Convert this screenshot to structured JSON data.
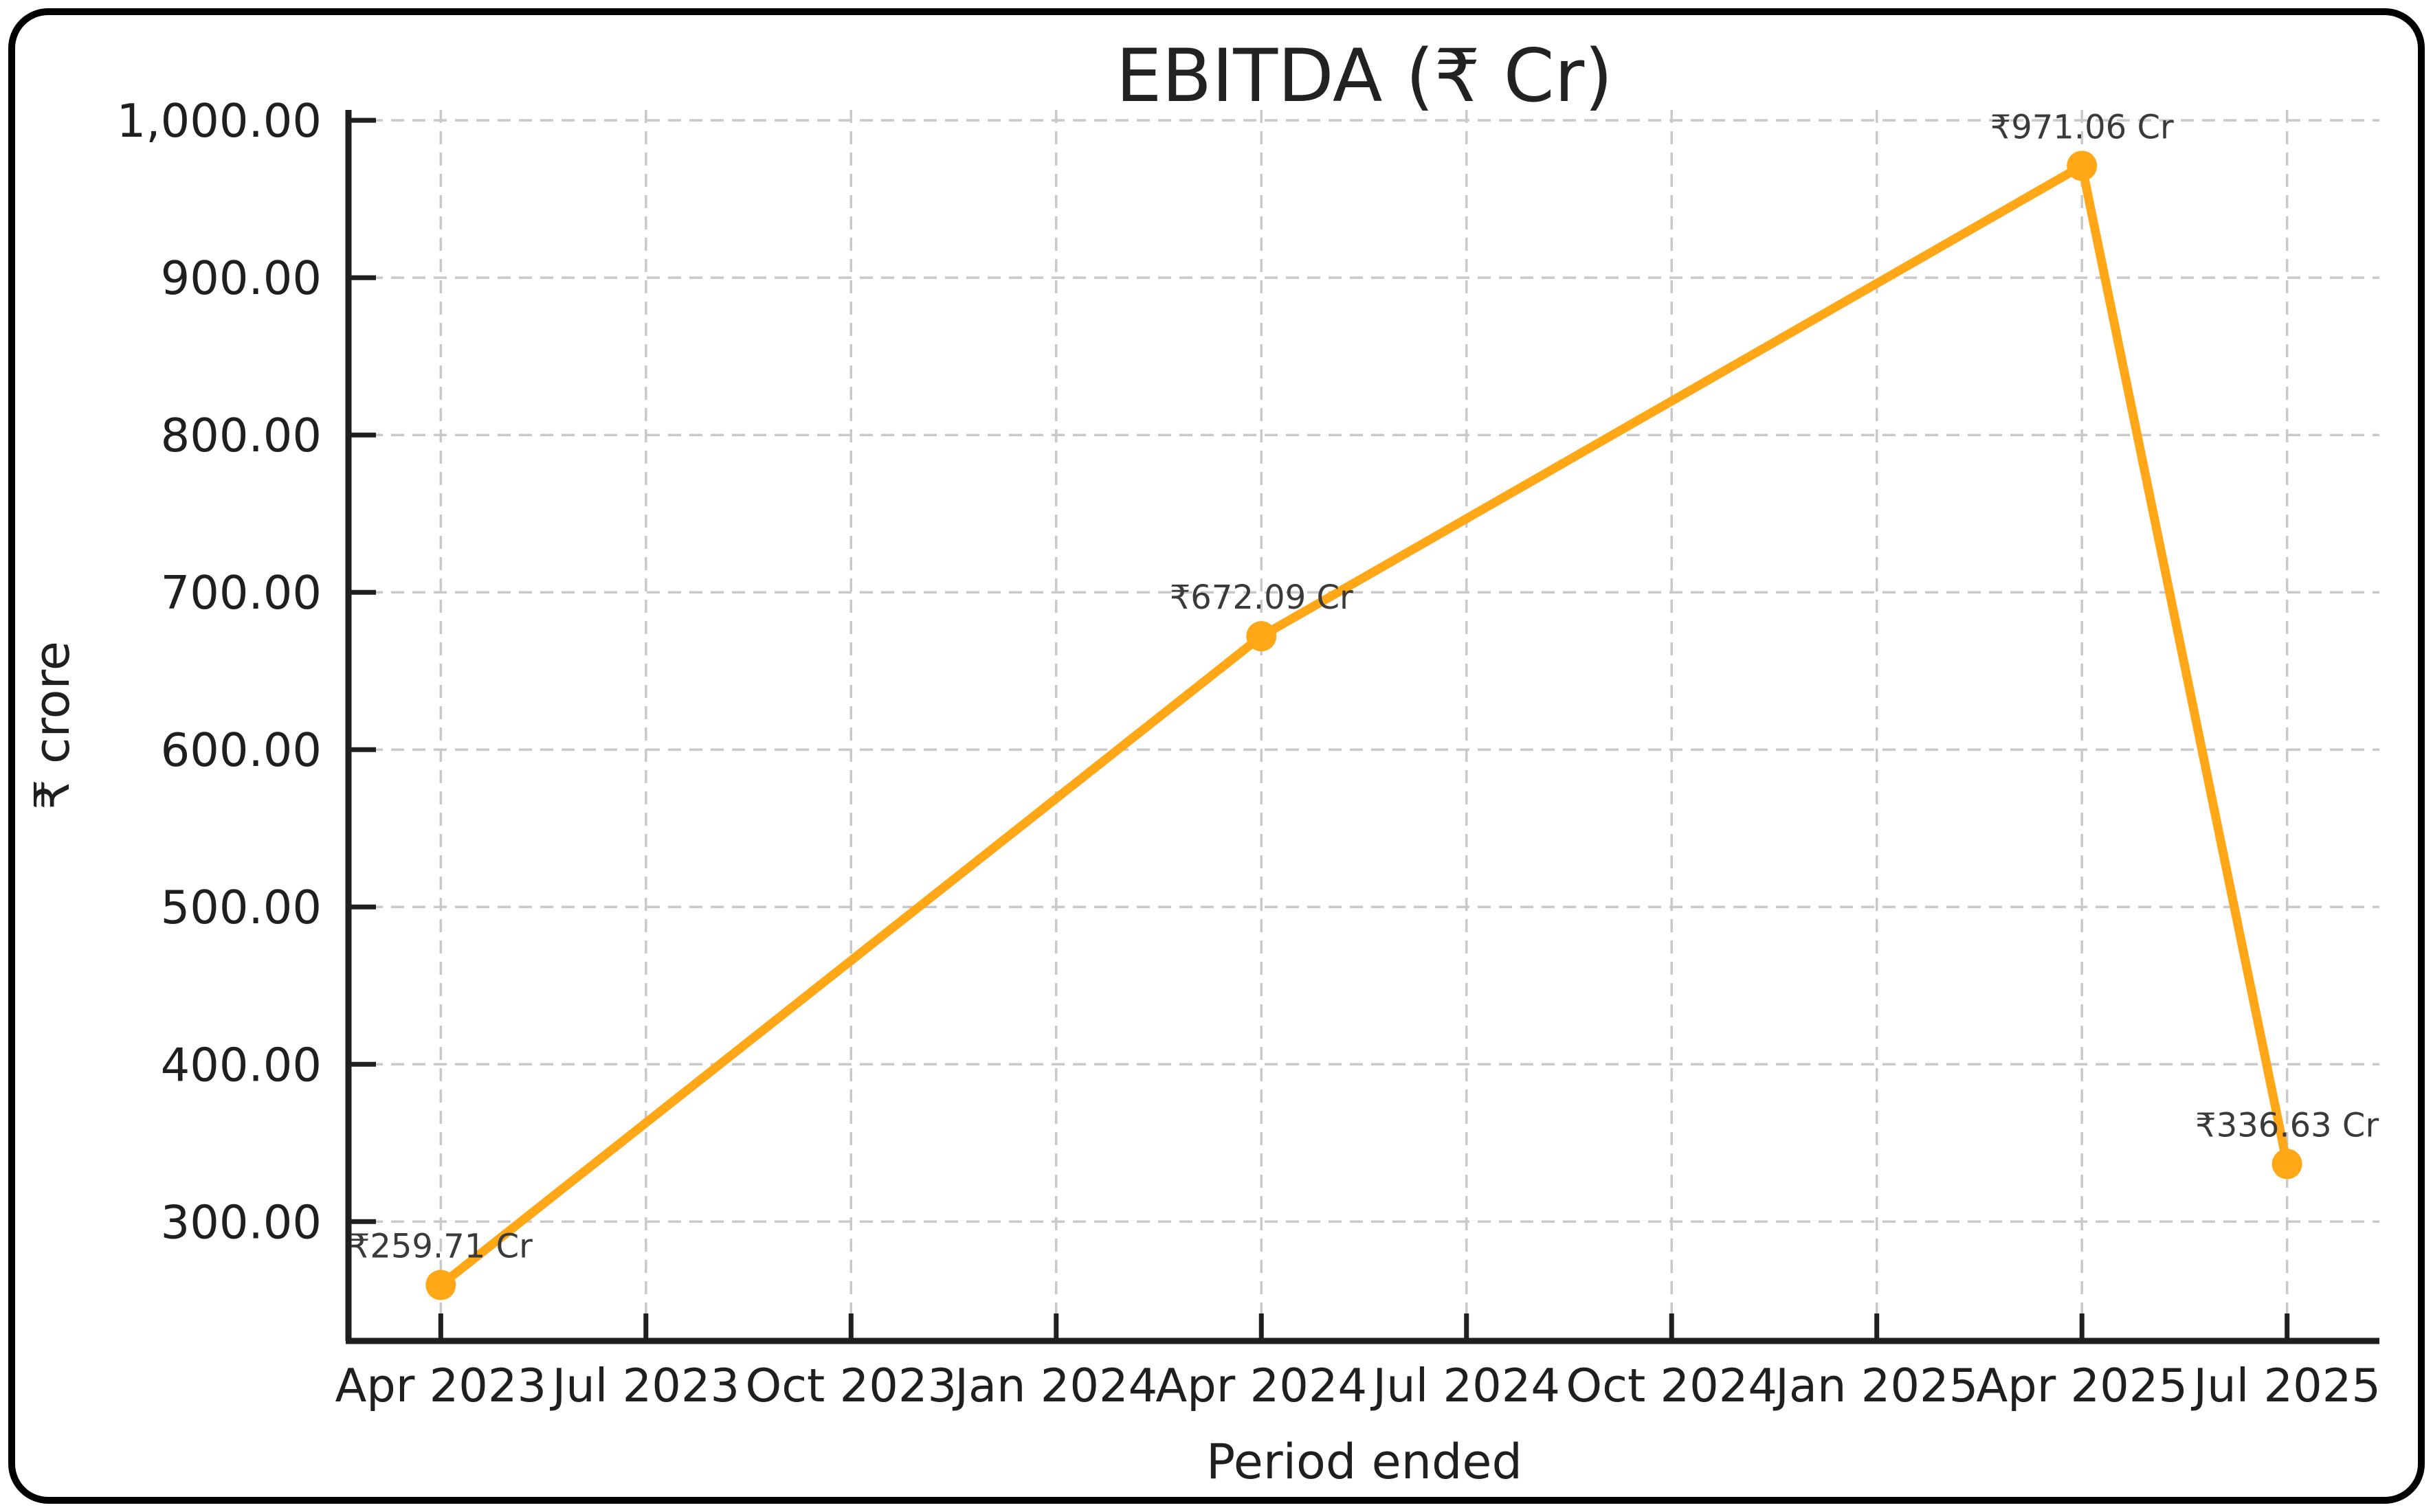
{
  "page": {
    "background": "#ffffff",
    "border_color": "#000000"
  },
  "chart_data": {
    "type": "line",
    "title": "EBITDA (₹ Cr)",
    "xlabel": "Period ended",
    "ylabel": "₹ crore",
    "x_tick_labels": [
      "Apr 2023",
      "Jul 2023",
      "Oct 2023",
      "Jan 2024",
      "Apr 2024",
      "Jul 2024",
      "Oct 2024",
      "Jan 2025",
      "Apr 2025",
      "Jul 2025"
    ],
    "x_tick_months": [
      0,
      3,
      6,
      9,
      12,
      15,
      18,
      21,
      24,
      27
    ],
    "y_ticks": [
      300,
      400,
      500,
      600,
      700,
      800,
      900,
      1000
    ],
    "y_tick_labels": [
      "300.00",
      "400.00",
      "500.00",
      "600.00",
      "700.00",
      "800.00",
      "900.00",
      "1,000.00"
    ],
    "xlim_months": [
      -1.35,
      28.35
    ],
    "ylim": [
      224.14,
      1006.63
    ],
    "grid": "dashed",
    "legend": "none",
    "series": [
      {
        "name": "EBITDA",
        "color": "#FFA716",
        "marker": "circle",
        "points": [
          {
            "period": "Apr 2023",
            "month": 0,
            "value": 259.71,
            "label": "₹259.71 Cr"
          },
          {
            "period": "Apr 2024",
            "month": 12,
            "value": 672.09,
            "label": "₹672.09 Cr"
          },
          {
            "period": "Apr 2025",
            "month": 24,
            "value": 971.06,
            "label": "₹971.06 Cr"
          },
          {
            "period": "Jul 2025",
            "month": 27,
            "value": 336.63,
            "label": "₹336.63 Cr"
          }
        ]
      }
    ],
    "colors": {
      "line": "#FFA716",
      "grid": "#C9C9C9",
      "spine": "#1F1F1F",
      "tick_text": "#1F1F1F",
      "title_text": "#222222",
      "data_label_text": "#3A3A3A"
    }
  }
}
